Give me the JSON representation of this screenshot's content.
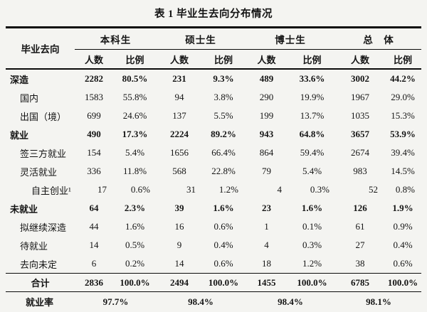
{
  "title": "表 1 毕业生去向分布情况",
  "colors": {
    "border": "#0a0a0a",
    "text": "#141414",
    "background": "#f4f4f1"
  },
  "table": {
    "corner_label": "毕业去向",
    "groups": [
      "本科生",
      "硕士生",
      "博士生",
      "总　体"
    ],
    "sub_headers": [
      "人数",
      "比例"
    ],
    "rows": [
      {
        "label": "深造",
        "level": 0,
        "bold": true,
        "shift": false,
        "values": [
          "2282",
          "80.5%",
          "231",
          "9.3%",
          "489",
          "33.6%",
          "3002",
          "44.2%"
        ]
      },
      {
        "label": "国内",
        "level": 1,
        "bold": false,
        "shift": false,
        "values": [
          "1583",
          "55.8%",
          "94",
          "3.8%",
          "290",
          "19.9%",
          "1967",
          "29.0%"
        ]
      },
      {
        "label": "出国（境）",
        "level": 1,
        "bold": false,
        "shift": false,
        "values": [
          "699",
          "24.6%",
          "137",
          "5.5%",
          "199",
          "13.7%",
          "1035",
          "15.3%"
        ]
      },
      {
        "label": "就业",
        "level": 0,
        "bold": true,
        "shift": false,
        "values": [
          "490",
          "17.3%",
          "2224",
          "89.2%",
          "943",
          "64.8%",
          "3657",
          "53.9%"
        ]
      },
      {
        "label": "签三方就业",
        "level": 1,
        "bold": false,
        "shift": false,
        "values": [
          "154",
          "5.4%",
          "1656",
          "66.4%",
          "864",
          "59.4%",
          "2674",
          "39.4%"
        ]
      },
      {
        "label": "灵活就业",
        "level": 1,
        "bold": false,
        "shift": false,
        "values": [
          "336",
          "11.8%",
          "568",
          "22.8%",
          "79",
          "5.4%",
          "983",
          "14.5%"
        ]
      },
      {
        "label": "自主创业¹",
        "level": 2,
        "bold": false,
        "shift": true,
        "values": [
          "17",
          "0.6%",
          "31",
          "1.2%",
          "4",
          "0.3%",
          "52",
          "0.8%"
        ]
      },
      {
        "label": "未就业",
        "level": 0,
        "bold": true,
        "shift": false,
        "values": [
          "64",
          "2.3%",
          "39",
          "1.6%",
          "23",
          "1.6%",
          "126",
          "1.9%"
        ]
      },
      {
        "label": "拟继续深造",
        "level": 1,
        "bold": false,
        "shift": false,
        "values": [
          "44",
          "1.6%",
          "16",
          "0.6%",
          "1",
          "0.1%",
          "61",
          "0.9%"
        ]
      },
      {
        "label": "待就业",
        "level": 1,
        "bold": false,
        "shift": false,
        "values": [
          "14",
          "0.5%",
          "9",
          "0.4%",
          "4",
          "0.3%",
          "27",
          "0.4%"
        ]
      },
      {
        "label": "去向未定",
        "level": 1,
        "bold": false,
        "shift": false,
        "values": [
          "6",
          "0.2%",
          "14",
          "0.6%",
          "18",
          "1.2%",
          "38",
          "0.6%"
        ]
      }
    ],
    "total_row": {
      "label": "合计",
      "values": [
        "2836",
        "100.0%",
        "2494",
        "100.0%",
        "1455",
        "100.0%",
        "6785",
        "100.0%"
      ]
    },
    "rate_row": {
      "label": "就业率",
      "values": [
        "97.7%",
        "98.4%",
        "98.4%",
        "98.1%"
      ]
    }
  }
}
